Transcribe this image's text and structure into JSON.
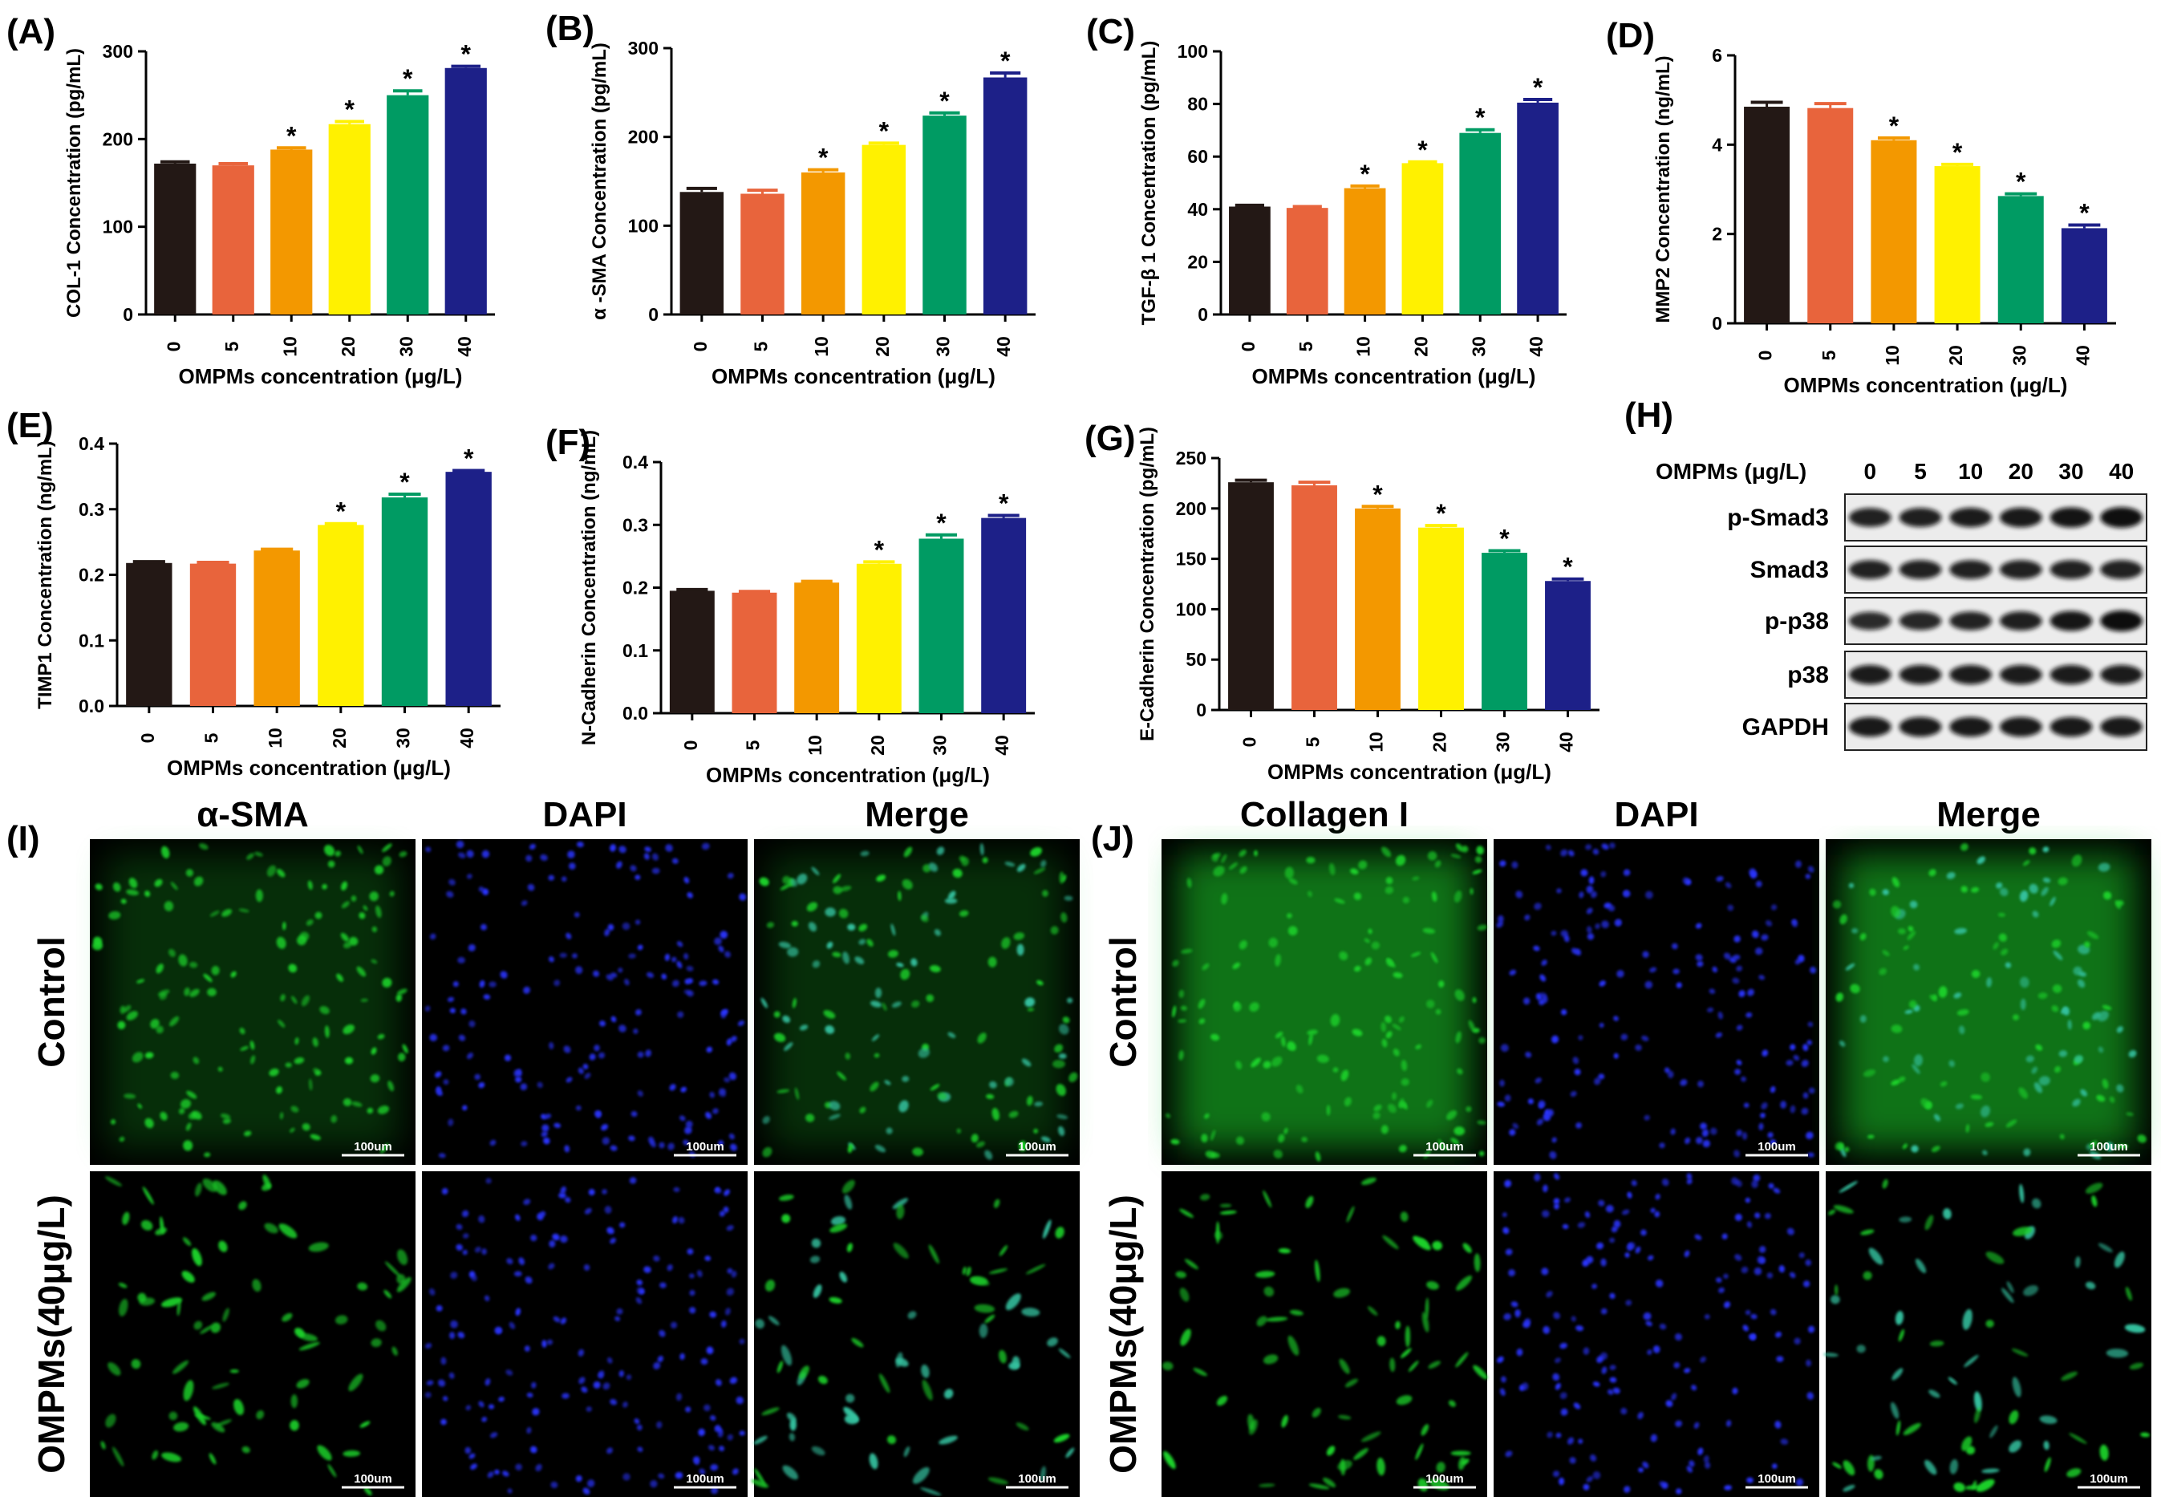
{
  "figure": {
    "x_axis_title": "OMPMs concentration (μg/L)",
    "bar_colors": [
      "#231815",
      "#E8643C",
      "#F39800",
      "#FFF100",
      "#009B63",
      "#1D2088"
    ]
  },
  "chart_data": [
    {
      "panel": "(A)",
      "type": "bar",
      "categories": [
        "0",
        "5",
        "10",
        "20",
        "30",
        "40"
      ],
      "values": [
        172,
        170,
        188,
        217,
        250,
        281
      ],
      "errors": [
        2,
        2,
        2,
        3,
        5,
        2
      ],
      "significant": [
        false,
        false,
        true,
        true,
        true,
        true
      ],
      "xlabel": "OMPMs concentration (μg/L)",
      "ylabel": "COL-1 Concentration (pg/mL)",
      "ylim": [
        0,
        300
      ],
      "yticks": [
        "0",
        "100",
        "200",
        "300"
      ]
    },
    {
      "panel": "(B)",
      "type": "bar",
      "categories": [
        "0",
        "5",
        "10",
        "20",
        "30",
        "40"
      ],
      "values": [
        138,
        136,
        160,
        191,
        224,
        267
      ],
      "errors": [
        4,
        4,
        3,
        2,
        3,
        5
      ],
      "significant": [
        false,
        false,
        true,
        true,
        true,
        true
      ],
      "xlabel": "OMPMs concentration (μg/L)",
      "ylabel": "α -SMA Concentration (pg/mL)",
      "ylim": [
        0,
        300
      ],
      "yticks": [
        "0",
        "100",
        "200",
        "300"
      ]
    },
    {
      "panel": "(C)",
      "type": "bar",
      "categories": [
        "0",
        "5",
        "10",
        "20",
        "30",
        "40"
      ],
      "values": [
        41,
        40.5,
        48,
        57.5,
        69,
        80.5
      ],
      "errors": [
        0.5,
        0.5,
        0.8,
        0.5,
        1.2,
        1.2
      ],
      "significant": [
        false,
        false,
        true,
        true,
        true,
        true
      ],
      "xlabel": "OMPMs concentration (μg/L)",
      "ylabel": "TGF-β 1 Concentration (pg/mL)",
      "ylim": [
        0,
        100
      ],
      "yticks": [
        "0",
        "20",
        "40",
        "60",
        "80",
        "100"
      ]
    },
    {
      "panel": "(D)",
      "type": "bar",
      "categories": [
        "0",
        "5",
        "10",
        "20",
        "30",
        "40"
      ],
      "values": [
        4.85,
        4.82,
        4.1,
        3.52,
        2.85,
        2.13
      ],
      "errors": [
        0.1,
        0.1,
        0.05,
        0.04,
        0.05,
        0.07
      ],
      "significant": [
        false,
        false,
        true,
        true,
        true,
        true
      ],
      "xlabel": "OMPMs concentration (μg/L)",
      "ylabel": "MMP2 Concentration (ng/mL)",
      "ylim": [
        0,
        6
      ],
      "yticks": [
        "0",
        "2",
        "4",
        "6"
      ]
    },
    {
      "panel": "(E)",
      "type": "bar",
      "categories": [
        "0",
        "5",
        "10",
        "20",
        "30",
        "40"
      ],
      "values": [
        0.218,
        0.217,
        0.237,
        0.276,
        0.318,
        0.357
      ],
      "errors": [
        0.002,
        0.002,
        0.002,
        0.002,
        0.005,
        0.002
      ],
      "significant": [
        false,
        false,
        false,
        true,
        true,
        true
      ],
      "xlabel": "OMPMs concentration (μg/L)",
      "ylabel": "TIMP1 Concentration (ng/mL)",
      "ylim": [
        0,
        0.4
      ],
      "yticks": [
        "0.0",
        "0.1",
        "0.2",
        "0.3",
        "0.4"
      ]
    },
    {
      "panel": "(F)",
      "type": "bar",
      "categories": [
        "0",
        "5",
        "10",
        "20",
        "30",
        "40"
      ],
      "values": [
        0.195,
        0.192,
        0.208,
        0.238,
        0.278,
        0.311
      ],
      "errors": [
        0.002,
        0.002,
        0.002,
        0.003,
        0.006,
        0.004
      ],
      "significant": [
        false,
        false,
        false,
        true,
        true,
        true
      ],
      "xlabel": "OMPMs concentration (μg/L)",
      "ylabel": "N-Cadherin Concentration (ng/mL)",
      "ylim": [
        0,
        0.4
      ],
      "yticks": [
        "0.0",
        "0.1",
        "0.2",
        "0.3",
        "0.4"
      ]
    },
    {
      "panel": "(G)",
      "type": "bar",
      "categories": [
        "0",
        "5",
        "10",
        "20",
        "30",
        "40"
      ],
      "values": [
        226,
        223,
        200,
        181,
        156,
        128
      ],
      "errors": [
        2,
        3,
        2,
        2,
        2,
        2
      ],
      "significant": [
        false,
        false,
        true,
        true,
        true,
        true
      ],
      "xlabel": "OMPMs concentration (μg/L)",
      "ylabel": "E-Cadherin Concentration (pg/mL)",
      "ylim": [
        0,
        250
      ],
      "yticks": [
        "0",
        "50",
        "100",
        "150",
        "200",
        "250"
      ]
    }
  ],
  "western_blot": {
    "panel": "(H)",
    "header_label": "OMPMs (μg/L)",
    "lanes": [
      "0",
      "5",
      "10",
      "20",
      "30",
      "40"
    ],
    "rows": [
      {
        "label": "p-Smad3",
        "intensity": [
          0.8,
          0.82,
          0.85,
          0.88,
          0.92,
          0.97
        ]
      },
      {
        "label": "Smad3",
        "intensity": [
          0.8,
          0.8,
          0.8,
          0.8,
          0.8,
          0.8
        ]
      },
      {
        "label": "p-p38",
        "intensity": [
          0.7,
          0.74,
          0.78,
          0.82,
          0.9,
          1.0
        ]
      },
      {
        "label": "p38",
        "intensity": [
          0.85,
          0.85,
          0.85,
          0.85,
          0.85,
          0.85
        ]
      },
      {
        "label": "GAPDH",
        "intensity": [
          0.88,
          0.88,
          0.88,
          0.88,
          0.88,
          0.88
        ]
      }
    ]
  },
  "micrographs": [
    {
      "panel": "(I)",
      "columns": [
        "α-SMA",
        "DAPI",
        "Merge"
      ],
      "rows": [
        "Control",
        "OMPMs(40μg/L)"
      ],
      "scale_bar": "100um"
    },
    {
      "panel": "(J)",
      "columns": [
        "Collagen I",
        "DAPI",
        "Merge"
      ],
      "rows": [
        "Control",
        "OMPMs(40μg/L)"
      ],
      "scale_bar": "100um"
    }
  ],
  "colors": {
    "green_channel": "#1fd12a",
    "blue_channel": "#2b34ff",
    "merge_cyan": "#35c2a0",
    "blot_band": "#111111",
    "blot_bg": "#ececec"
  }
}
